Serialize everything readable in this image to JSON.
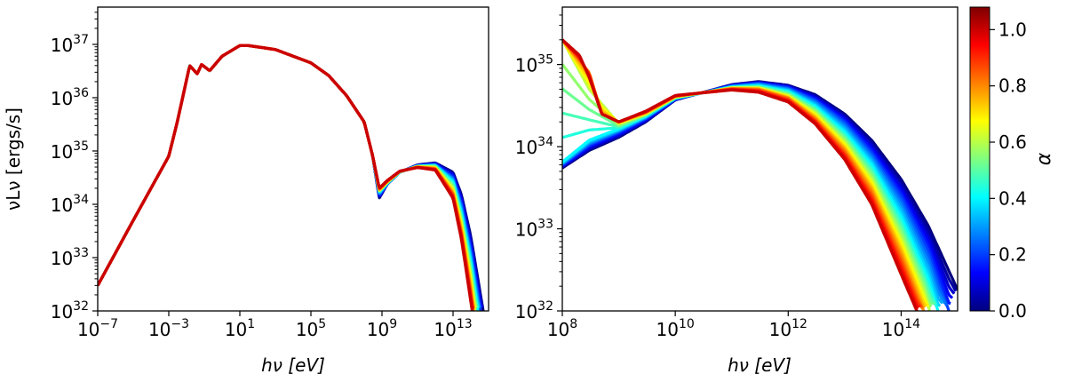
{
  "chart_data": [
    {
      "type": "line",
      "xlabel_html": "hν [eV]",
      "ylabel": "νLν [ergs/s]",
      "x_scale": "log",
      "y_scale": "log",
      "xlim": [
        1e-07,
        1000000000000000.0
      ],
      "ylim": [
        1e+32,
        5e+37
      ],
      "x_ticks": [
        {
          "value": 1e-07,
          "base": "10",
          "exp": "−7"
        },
        {
          "value": 0.001,
          "base": "10",
          "exp": "−3"
        },
        {
          "value": 10.0,
          "base": "10",
          "exp": "1"
        },
        {
          "value": 100000.0,
          "base": "10",
          "exp": "5"
        },
        {
          "value": 1000000000.0,
          "base": "10",
          "exp": "9"
        },
        {
          "value": 10000000000000.0,
          "base": "10",
          "exp": "13"
        }
      ],
      "y_ticks": [
        {
          "value": 1e+32,
          "base": "10",
          "exp": "32"
        },
        {
          "value": 1e+33,
          "base": "10",
          "exp": "33"
        },
        {
          "value": 1e+34,
          "base": "10",
          "exp": "34"
        },
        {
          "value": 1e+35,
          "base": "10",
          "exp": "35"
        },
        {
          "value": 1e+36,
          "base": "10",
          "exp": "36"
        },
        {
          "value": 1e+37,
          "base": "10",
          "exp": "37"
        }
      ],
      "series_color_by": "alpha",
      "series": [
        {
          "alpha": 0.0,
          "x": [
            1e-07,
            1e-05,
            0.001,
            0.003,
            0.015,
            0.04,
            0.07,
            0.2,
            1,
            10,
            30,
            1000.0,
            100000.0,
            1000000.0,
            10000000.0,
            100000000.0,
            300000000.0,
            700000000.0,
            2000000000.0,
            10000000000.0,
            100000000000.0,
            1000000000000.0,
            10000000000000.0,
            30000000000000.0,
            100000000000000.0,
            500000000000000.0
          ],
          "y": [
            3e+32,
            5e+33,
            8e+34,
            3.5e+35,
            4e+36,
            2.8e+36,
            4.2e+36,
            3.2e+36,
            6e+36,
            9.5e+36,
            9.5e+36,
            8e+36,
            4.5e+36,
            2.6e+36,
            1.1e+36,
            3.5e+35,
            8e+34,
            1.3e+34,
            2.4e+34,
            4e+34,
            5.5e+34,
            6e+34,
            4e+34,
            1.5e+34,
            2.5e+33,
            1e+32
          ]
        },
        {
          "alpha": 0.2,
          "x": [
            1e-07,
            1e-05,
            0.001,
            0.003,
            0.015,
            0.04,
            0.07,
            0.2,
            1,
            10,
            30,
            1000.0,
            100000.0,
            1000000.0,
            10000000.0,
            100000000.0,
            300000000.0,
            700000000.0,
            2000000000.0,
            10000000000.0,
            100000000000.0,
            1000000000000.0,
            10000000000000.0,
            30000000000000.0,
            100000000000000.0,
            350000000000000.0
          ],
          "y": [
            3e+32,
            5e+33,
            8e+34,
            3.5e+35,
            4e+36,
            2.8e+36,
            4.2e+36,
            3.2e+36,
            6e+36,
            9.5e+36,
            9.5e+36,
            8e+36,
            4.5e+36,
            2.6e+36,
            1.1e+36,
            3.5e+35,
            8e+34,
            1.5e+34,
            2.4e+34,
            4e+34,
            5.3e+34,
            5.6e+34,
            3.2e+34,
            1e+34,
            1.4e+33,
            1e+32
          ]
        },
        {
          "alpha": 0.4,
          "x": [
            1e-07,
            1e-05,
            0.001,
            0.003,
            0.015,
            0.04,
            0.07,
            0.2,
            1,
            10,
            30,
            1000.0,
            100000.0,
            1000000.0,
            10000000.0,
            100000000.0,
            300000000.0,
            700000000.0,
            2000000000.0,
            10000000000.0,
            100000000000.0,
            1000000000000.0,
            10000000000000.0,
            30000000000000.0,
            100000000000000.0,
            250000000000000.0
          ],
          "y": [
            3e+32,
            5e+33,
            8e+34,
            3.5e+35,
            4e+36,
            2.8e+36,
            4.2e+36,
            3.2e+36,
            6e+36,
            9.5e+36,
            9.5e+36,
            8e+36,
            4.5e+36,
            2.6e+36,
            1.1e+36,
            3.5e+35,
            8e+34,
            1.7e+34,
            2.5e+34,
            4e+34,
            5.2e+34,
            5.3e+34,
            2.6e+34,
            6.5e+33,
            8e+32,
            1e+32
          ]
        },
        {
          "alpha": 0.6,
          "x": [
            1e-07,
            1e-05,
            0.001,
            0.003,
            0.015,
            0.04,
            0.07,
            0.2,
            1,
            10,
            30,
            1000.0,
            100000.0,
            1000000.0,
            10000000.0,
            100000000.0,
            300000000.0,
            700000000.0,
            2000000000.0,
            10000000000.0,
            100000000000.0,
            1000000000000.0,
            10000000000000.0,
            30000000000000.0,
            100000000000000.0,
            180000000000000.0
          ],
          "y": [
            3e+32,
            5e+33,
            8e+34,
            3.5e+35,
            4e+36,
            2.8e+36,
            4.2e+36,
            3.2e+36,
            6e+36,
            9.5e+36,
            9.5e+36,
            8e+36,
            4.5e+36,
            2.6e+36,
            1.1e+36,
            3.5e+35,
            8e+34,
            1.8e+34,
            2.6e+34,
            4.1e+34,
            5.1e+34,
            5e+34,
            2e+34,
            4.5e+33,
            4.5e+32,
            1e+32
          ]
        },
        {
          "alpha": 0.8,
          "x": [
            1e-07,
            1e-05,
            0.001,
            0.003,
            0.015,
            0.04,
            0.07,
            0.2,
            1,
            10,
            30,
            1000.0,
            100000.0,
            1000000.0,
            10000000.0,
            100000000.0,
            300000000.0,
            700000000.0,
            2000000000.0,
            10000000000.0,
            100000000000.0,
            1000000000000.0,
            10000000000000.0,
            30000000000000.0,
            100000000000000.0,
            140000000000000.0
          ],
          "y": [
            3e+32,
            5e+33,
            8e+34,
            3.5e+35,
            4e+36,
            2.8e+36,
            4.2e+36,
            3.2e+36,
            6e+36,
            9.5e+36,
            9.5e+36,
            8e+36,
            4.5e+36,
            2.6e+36,
            1.1e+36,
            3.5e+35,
            8e+34,
            1.9e+34,
            2.7e+34,
            4.1e+34,
            5e+34,
            4.7e+34,
            1.6e+34,
            3e+33,
            2.5e+32,
            1e+32
          ]
        },
        {
          "alpha": 1.0,
          "x": [
            1e-07,
            1e-05,
            0.001,
            0.003,
            0.015,
            0.04,
            0.07,
            0.2,
            1,
            10,
            30,
            1000.0,
            100000.0,
            1000000.0,
            10000000.0,
            100000000.0,
            300000000.0,
            700000000.0,
            2000000000.0,
            10000000000.0,
            100000000000.0,
            1000000000000.0,
            10000000000000.0,
            30000000000000.0,
            100000000000000.0,
            120000000000000.0
          ],
          "y": [
            3e+32,
            5e+33,
            8e+34,
            3.5e+35,
            4e+36,
            2.8e+36,
            4.2e+36,
            3.2e+36,
            6e+36,
            9.5e+36,
            9.5e+36,
            8e+36,
            4.5e+36,
            2.6e+36,
            1.1e+36,
            3.5e+35,
            8e+34,
            2e+34,
            2.8e+34,
            4.2e+34,
            4.9e+34,
            4.4e+34,
            1.3e+34,
            2.2e+33,
            1.5e+32,
            1e+32
          ]
        }
      ]
    },
    {
      "type": "line",
      "xlabel_html": "hν [eV]",
      "x_scale": "log",
      "y_scale": "log",
      "xlim": [
        100000000.0,
        1000000000000000.0
      ],
      "ylim": [
        1e+32,
        5e+35
      ],
      "x_ticks": [
        {
          "value": 100000000.0,
          "base": "10",
          "exp": "8"
        },
        {
          "value": 10000000000.0,
          "base": "10",
          "exp": "10"
        },
        {
          "value": 1000000000000.0,
          "base": "10",
          "exp": "12"
        },
        {
          "value": 100000000000000.0,
          "base": "10",
          "exp": "14"
        }
      ],
      "y_ticks": [
        {
          "value": 1e+32,
          "base": "10",
          "exp": "32"
        },
        {
          "value": 1e+33,
          "base": "10",
          "exp": "33"
        },
        {
          "value": 1e+34,
          "base": "10",
          "exp": "34"
        },
        {
          "value": 1e+35,
          "base": "10",
          "exp": "35"
        }
      ],
      "series_color_by": "alpha",
      "series": [
        {
          "alpha": 0.0,
          "x": [
            100000000.0,
            300000000.0,
            1000000000.0,
            3000000000.0,
            10000000000.0,
            100000000000.0,
            300000000000.0,
            1000000000000.0,
            3000000000000.0,
            10000000000000.0,
            30000000000000.0,
            100000000000000.0,
            300000000000000.0,
            1000000000000000.0
          ],
          "y": [
            5.5e+33,
            9e+33,
            1.3e+34,
            2e+34,
            3.7e+34,
            5.7e+34,
            6.2e+34,
            5.6e+34,
            4.3e+34,
            2.5e+34,
            1.2e+34,
            4e+33,
            1.1e+33,
            1.8e+32
          ]
        },
        {
          "alpha": 0.2,
          "x": [
            100000000.0,
            300000000.0,
            1000000000.0,
            3000000000.0,
            10000000000.0,
            100000000000.0,
            300000000000.0,
            1000000000000.0,
            3000000000000.0,
            10000000000000.0,
            30000000000000.0,
            100000000000000.0,
            300000000000000.0,
            700000000000000.0
          ],
          "y": [
            6e+33,
            1.05e+34,
            1.5e+34,
            2.2e+34,
            3.8e+34,
            5.5e+34,
            5.9e+34,
            5.2e+34,
            3.7e+34,
            2e+34,
            8.5e+33,
            2.5e+33,
            5.5e+32,
            1e+32
          ]
        },
        {
          "alpha": 0.4,
          "x": [
            100000000.0,
            300000000.0,
            1000000000.0,
            3000000000.0,
            10000000000.0,
            100000000000.0,
            300000000000.0,
            1000000000000.0,
            3000000000000.0,
            10000000000000.0,
            30000000000000.0,
            100000000000000.0,
            300000000000000.0,
            450000000000000.0
          ],
          "y": [
            6.5e+33,
            1.2e+34,
            1.65e+34,
            2.35e+34,
            3.9e+34,
            5.3e+34,
            5.5e+34,
            4.7e+34,
            3.1e+34,
            1.5e+34,
            6e+33,
            1.4e+33,
            2.5e+32,
            1e+32
          ]
        },
        {
          "alpha": 0.6,
          "x": [
            100000000.0,
            300000000.0,
            1000000000.0,
            3000000000.0,
            10000000000.0,
            100000000000.0,
            300000000000.0,
            1000000000000.0,
            3000000000000.0,
            10000000000000.0,
            30000000000000.0,
            100000000000000.0,
            250000000000000.0,
            320000000000000.0
          ],
          "y": [
            2e+35,
            5e+34,
            1.9e+34,
            2.5e+34,
            4e+34,
            5.2e+34,
            5.2e+34,
            4.2e+34,
            2.6e+34,
            1.15e+34,
            4.1e+33,
            8e+32,
            1.8e+32,
            1e+32
          ]
        },
        {
          "alpha": 0.8,
          "x": [
            100000000.0,
            300000000.0,
            500000000.0,
            1000000000.0,
            3000000000.0,
            10000000000.0,
            100000000000.0,
            300000000000.0,
            1000000000000.0,
            3000000000000.0,
            10000000000000.0,
            30000000000000.0,
            100000000000000.0,
            250000000000000.0
          ],
          "y": [
            2e+35,
            8e+34,
            2.5e+34,
            2e+34,
            2.6e+34,
            4.1e+34,
            5.1e+34,
            5e+34,
            3.9e+34,
            2.2e+34,
            9e+33,
            2.9e+33,
            4.8e+32,
            1e+32
          ]
        },
        {
          "alpha": 1.0,
          "x": [
            100000000.0,
            200000000.0,
            300000000.0,
            500000000.0,
            1000000000.0,
            3000000000.0,
            10000000000.0,
            100000000000.0,
            300000000000.0,
            1000000000000.0,
            3000000000000.0,
            10000000000000.0,
            30000000000000.0,
            100000000000000.0,
            190000000000000.0
          ],
          "y": [
            2e+35,
            1.3e+35,
            7e+34,
            2.5e+34,
            2e+34,
            2.7e+34,
            4.2e+34,
            4.9e+34,
            4.6e+34,
            3.5e+34,
            1.9e+34,
            7e+33,
            2e+33,
            2.8e+32,
            1e+32
          ]
        }
      ]
    }
  ],
  "colorbar": {
    "label": "α",
    "range": [
      0.0,
      1.08
    ],
    "ticks": [
      {
        "value": 0.0,
        "label": "0.0"
      },
      {
        "value": 0.2,
        "label": "0.2"
      },
      {
        "value": 0.4,
        "label": "0.4"
      },
      {
        "value": 0.6,
        "label": "0.6"
      },
      {
        "value": 0.8,
        "label": "0.8"
      },
      {
        "value": 1.0,
        "label": "1.0"
      }
    ],
    "colormap": "jet",
    "colors": [
      "#00007f",
      "#0000ff",
      "#007fff",
      "#00ffff",
      "#7fff7f",
      "#ffff00",
      "#ff7f00",
      "#ff0000",
      "#7f0000"
    ]
  }
}
